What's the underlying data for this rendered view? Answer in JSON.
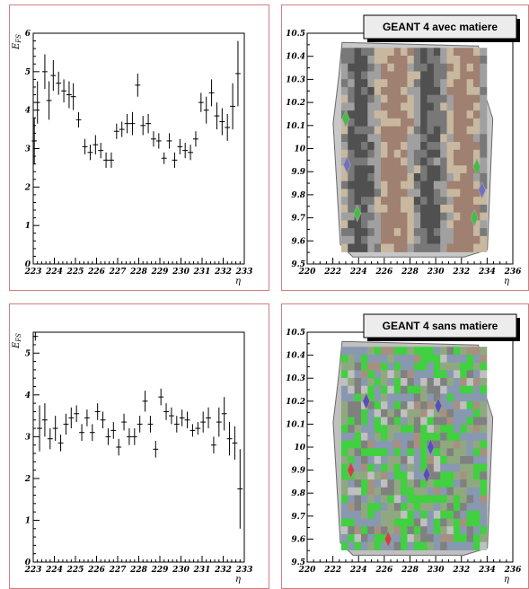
{
  "chart_data": [
    {
      "type": "scatter",
      "panel": "top-left",
      "ylabel": "E_FS",
      "xlabel": "η",
      "xlim": [
        223,
        233
      ],
      "ylim": [
        0,
        6
      ],
      "xticks": [
        "223",
        "224",
        "225",
        "226",
        "227",
        "228",
        "229",
        "230",
        "231",
        "232",
        "233"
      ],
      "yticks": [
        "0",
        "1",
        "2",
        "3",
        "4",
        "5",
        "6"
      ],
      "points": [
        {
          "x": 223.05,
          "y": 3.2,
          "err": 0.6
        },
        {
          "x": 223.2,
          "y": 4.2,
          "err": 0.55
        },
        {
          "x": 223.55,
          "y": 5.0,
          "err": 0.45
        },
        {
          "x": 223.75,
          "y": 4.25,
          "err": 0.5
        },
        {
          "x": 223.95,
          "y": 4.9,
          "err": 0.4
        },
        {
          "x": 224.2,
          "y": 4.7,
          "err": 0.3
        },
        {
          "x": 224.45,
          "y": 4.5,
          "err": 0.3
        },
        {
          "x": 224.7,
          "y": 4.4,
          "err": 0.35
        },
        {
          "x": 224.9,
          "y": 4.35,
          "err": 0.35
        },
        {
          "x": 225.15,
          "y": 3.75,
          "err": 0.2
        },
        {
          "x": 225.45,
          "y": 3.05,
          "err": 0.2
        },
        {
          "x": 225.7,
          "y": 2.9,
          "err": 0.2
        },
        {
          "x": 225.95,
          "y": 3.1,
          "err": 0.25
        },
        {
          "x": 226.2,
          "y": 2.95,
          "err": 0.2
        },
        {
          "x": 226.45,
          "y": 2.7,
          "err": 0.2
        },
        {
          "x": 226.7,
          "y": 2.7,
          "err": 0.2
        },
        {
          "x": 226.95,
          "y": 3.45,
          "err": 0.2
        },
        {
          "x": 227.2,
          "y": 3.5,
          "err": 0.2
        },
        {
          "x": 227.45,
          "y": 3.65,
          "err": 0.25
        },
        {
          "x": 227.7,
          "y": 3.65,
          "err": 0.3
        },
        {
          "x": 227.95,
          "y": 4.65,
          "err": 0.3
        },
        {
          "x": 228.2,
          "y": 3.6,
          "err": 0.25
        },
        {
          "x": 228.45,
          "y": 3.65,
          "err": 0.25
        },
        {
          "x": 228.7,
          "y": 3.25,
          "err": 0.2
        },
        {
          "x": 228.95,
          "y": 3.2,
          "err": 0.2
        },
        {
          "x": 229.2,
          "y": 2.75,
          "err": 0.15
        },
        {
          "x": 229.45,
          "y": 3.2,
          "err": 0.2
        },
        {
          "x": 229.7,
          "y": 2.7,
          "err": 0.2
        },
        {
          "x": 229.95,
          "y": 3.05,
          "err": 0.2
        },
        {
          "x": 230.2,
          "y": 2.95,
          "err": 0.2
        },
        {
          "x": 230.45,
          "y": 2.9,
          "err": 0.2
        },
        {
          "x": 230.7,
          "y": 3.25,
          "err": 0.2
        },
        {
          "x": 230.95,
          "y": 4.2,
          "err": 0.25
        },
        {
          "x": 231.2,
          "y": 4.0,
          "err": 0.35
        },
        {
          "x": 231.45,
          "y": 4.45,
          "err": 0.35
        },
        {
          "x": 231.7,
          "y": 3.85,
          "err": 0.35
        },
        {
          "x": 231.95,
          "y": 3.7,
          "err": 0.35
        },
        {
          "x": 232.2,
          "y": 3.55,
          "err": 0.35
        },
        {
          "x": 232.45,
          "y": 4.1,
          "err": 0.6
        },
        {
          "x": 232.7,
          "y": 4.95,
          "err": 0.85
        }
      ]
    },
    {
      "type": "heatmap",
      "panel": "top-right",
      "title": "GEANT 4 avec matiere",
      "xlabel": "η",
      "xlim": [
        220,
        236
      ],
      "ylim": [
        9.5,
        10.5
      ],
      "xticks": [
        "220",
        "222",
        "224",
        "226",
        "228",
        "230",
        "232",
        "234",
        "236"
      ],
      "yticks": [
        "9.5",
        "9.6",
        "9.7",
        "9.8",
        "9.9",
        "10",
        "10.1",
        "10.2",
        "10.3",
        "10.4",
        "10.5"
      ],
      "colors": [
        "#c8c8c8",
        "#a0a0a0",
        "#787878",
        "#505050",
        "#c8b8a0",
        "#a08070",
        "#40c040",
        "#7070c0"
      ]
    },
    {
      "type": "scatter",
      "panel": "bottom-left",
      "ylabel": "E_FS",
      "xlabel": "η",
      "xlim": [
        223,
        233
      ],
      "ylim": [
        0,
        5.5
      ],
      "xticks": [
        "223",
        "224",
        "225",
        "226",
        "227",
        "228",
        "229",
        "230",
        "231",
        "232",
        "233"
      ],
      "yticks": [
        "0",
        "1",
        "2",
        "3",
        "4",
        "5"
      ],
      "points": [
        {
          "x": 223.1,
          "y": 5.4,
          "err": 0.1
        },
        {
          "x": 223.3,
          "y": 3.2,
          "err": 0.55
        },
        {
          "x": 223.55,
          "y": 3.4,
          "err": 0.4
        },
        {
          "x": 223.8,
          "y": 2.95,
          "err": 0.25
        },
        {
          "x": 224.05,
          "y": 3.2,
          "err": 0.3
        },
        {
          "x": 224.3,
          "y": 2.85,
          "err": 0.2
        },
        {
          "x": 224.55,
          "y": 3.3,
          "err": 0.25
        },
        {
          "x": 224.8,
          "y": 3.45,
          "err": 0.25
        },
        {
          "x": 225.05,
          "y": 3.55,
          "err": 0.2
        },
        {
          "x": 225.3,
          "y": 3.1,
          "err": 0.2
        },
        {
          "x": 225.55,
          "y": 3.45,
          "err": 0.2
        },
        {
          "x": 225.8,
          "y": 3.1,
          "err": 0.2
        },
        {
          "x": 226.05,
          "y": 3.6,
          "err": 0.2
        },
        {
          "x": 226.3,
          "y": 3.4,
          "err": 0.2
        },
        {
          "x": 226.55,
          "y": 3.0,
          "err": 0.2
        },
        {
          "x": 226.8,
          "y": 3.15,
          "err": 0.2
        },
        {
          "x": 227.05,
          "y": 2.75,
          "err": 0.2
        },
        {
          "x": 227.3,
          "y": 3.35,
          "err": 0.2
        },
        {
          "x": 227.55,
          "y": 3.0,
          "err": 0.2
        },
        {
          "x": 227.8,
          "y": 3.0,
          "err": 0.2
        },
        {
          "x": 228.05,
          "y": 3.3,
          "err": 0.2
        },
        {
          "x": 228.3,
          "y": 3.85,
          "err": 0.25
        },
        {
          "x": 228.55,
          "y": 3.3,
          "err": 0.2
        },
        {
          "x": 228.8,
          "y": 2.7,
          "err": 0.2
        },
        {
          "x": 229.05,
          "y": 3.95,
          "err": 0.2
        },
        {
          "x": 229.3,
          "y": 3.6,
          "err": 0.2
        },
        {
          "x": 229.55,
          "y": 3.5,
          "err": 0.2
        },
        {
          "x": 229.8,
          "y": 3.3,
          "err": 0.2
        },
        {
          "x": 230.05,
          "y": 3.45,
          "err": 0.2
        },
        {
          "x": 230.3,
          "y": 3.4,
          "err": 0.2
        },
        {
          "x": 230.55,
          "y": 3.15,
          "err": 0.15
        },
        {
          "x": 230.8,
          "y": 3.2,
          "err": 0.15
        },
        {
          "x": 231.05,
          "y": 3.35,
          "err": 0.25
        },
        {
          "x": 231.3,
          "y": 3.45,
          "err": 0.25
        },
        {
          "x": 231.55,
          "y": 2.8,
          "err": 0.2
        },
        {
          "x": 231.8,
          "y": 3.35,
          "err": 0.35
        },
        {
          "x": 232.05,
          "y": 3.55,
          "err": 0.4
        },
        {
          "x": 232.3,
          "y": 2.95,
          "err": 0.4
        },
        {
          "x": 232.55,
          "y": 2.85,
          "err": 0.4
        },
        {
          "x": 232.8,
          "y": 1.75,
          "err": 0.95
        }
      ]
    },
    {
      "type": "heatmap",
      "panel": "bottom-right",
      "title": "GEANT 4 sans matiere",
      "xlabel": "η",
      "xlim": [
        220,
        236
      ],
      "ylim": [
        9.5,
        10.5
      ],
      "xticks": [
        "220",
        "222",
        "224",
        "226",
        "228",
        "230",
        "232",
        "234",
        "236"
      ],
      "yticks": [
        "9.5",
        "9.6",
        "9.7",
        "9.8",
        "9.9",
        "10",
        "10.1",
        "10.2",
        "10.3",
        "10.4",
        "10.5"
      ],
      "colors": [
        "#c0c0c0",
        "#a89080",
        "#808080",
        "#40d040",
        "#8898b0",
        "#90a880",
        "#5050c0",
        "#d04040"
      ]
    }
  ]
}
